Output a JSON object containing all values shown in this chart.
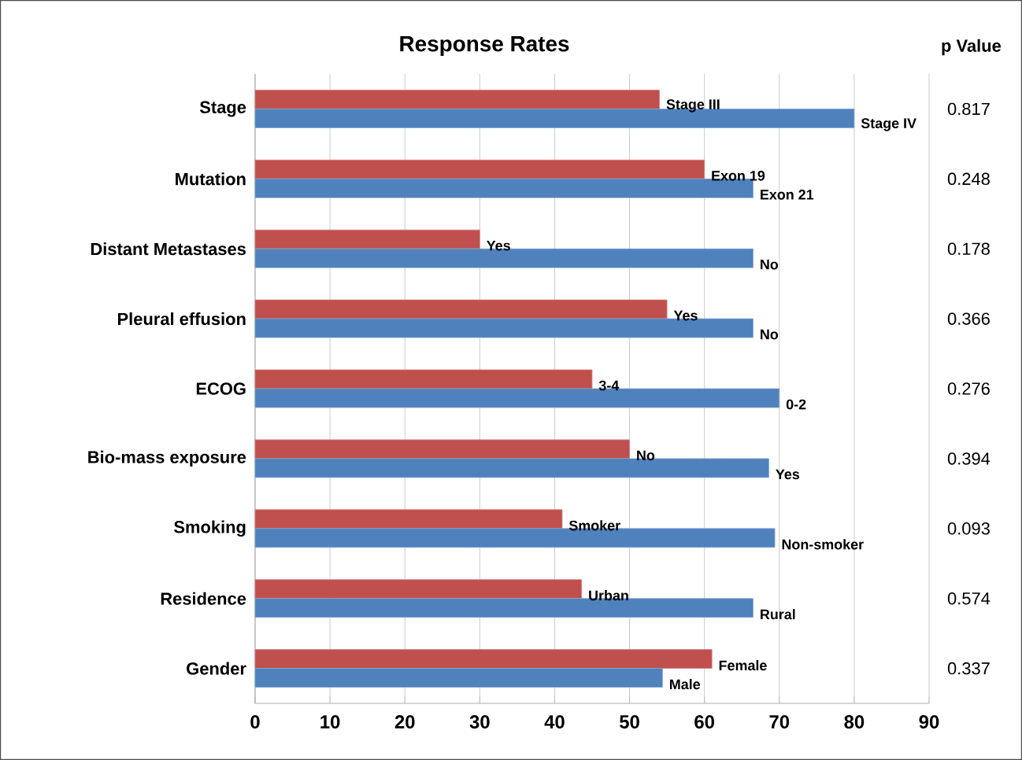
{
  "chart_data": {
    "type": "bar",
    "orientation": "horizontal",
    "title": "Response Rates",
    "categories": [
      "Stage",
      "Mutation",
      "Distant Metastases",
      "Pleural effusion",
      "ECOG",
      "Bio-mass exposure",
      "Smoking",
      "Residence",
      "Gender"
    ],
    "series": [
      {
        "color": "#c0504d",
        "values": [
          54,
          60,
          30,
          55,
          45,
          50,
          41,
          43.6,
          61
        ],
        "value_labels": [
          "Stage III",
          "Exon 19",
          "Yes",
          "Yes",
          "3-4",
          "No",
          "Smoker",
          "Urban",
          "Female"
        ]
      },
      {
        "color": "#4f81bd",
        "values": [
          80,
          66.5,
          66.5,
          66.5,
          70,
          68.6,
          69.4,
          66.5,
          54.4
        ],
        "value_labels": [
          "Stage IV",
          "Exon 21",
          "No",
          "No",
          "0-2",
          "Yes",
          "Non-smoker",
          "Rural",
          "Male"
        ]
      }
    ],
    "xlim": [
      0,
      90
    ],
    "xticks": [
      0,
      10,
      20,
      30,
      40,
      50,
      60,
      70,
      80,
      90
    ],
    "grid": "x",
    "annotations": [
      "p Value",
      "0.817",
      "0.248",
      "0.178",
      "0.366",
      "0.276",
      "0.394",
      "0.093",
      "0.574",
      "0.337"
    ]
  }
}
